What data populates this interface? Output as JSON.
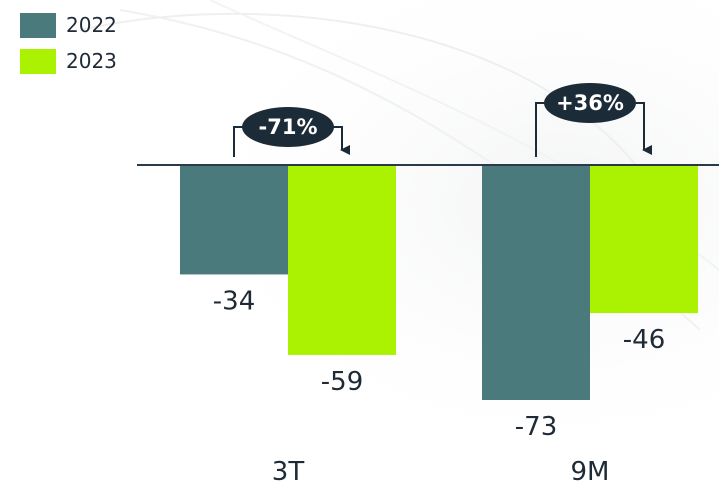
{
  "legend": [
    {
      "label": "2022",
      "color": "#4a7a7b"
    },
    {
      "label": "2023",
      "color": "#aaf201"
    }
  ],
  "chart_data": {
    "type": "bar",
    "categories": [
      "3T",
      "9M"
    ],
    "series": [
      {
        "name": "2022",
        "values": [
          -34,
          -73
        ],
        "color": "#4a7a7b"
      },
      {
        "name": "2023",
        "values": [
          -59,
          -46
        ],
        "color": "#aaf201"
      }
    ],
    "value_labels": [
      [
        "-34",
        "-59"
      ],
      [
        "-73",
        "-46"
      ]
    ],
    "ylim": [
      -75,
      0
    ],
    "grid": false,
    "legend_position": "top-left",
    "annotations": [
      {
        "category": "3T",
        "text": "-71%"
      },
      {
        "category": "9M",
        "text": "+36%"
      }
    ],
    "title": "",
    "xlabel": "",
    "ylabel": ""
  },
  "colors": {
    "axis": "#2a3a48",
    "text": "#1e2a36",
    "badge": "#1c2b38",
    "badge_text": "#ffffff"
  }
}
